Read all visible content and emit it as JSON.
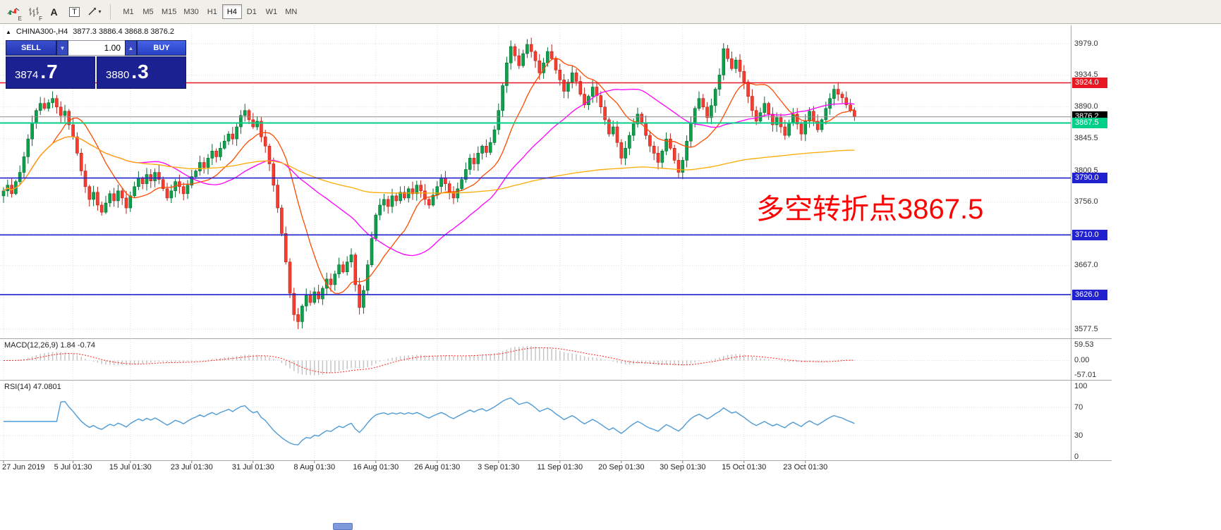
{
  "toolbar": {
    "sub_e": "E",
    "sub_f": "F",
    "text_tool": "A",
    "template_tool": "T",
    "dropdown_glyph": "▾",
    "timeframes": [
      "M1",
      "M5",
      "M15",
      "M30",
      "H1",
      "H4",
      "D1",
      "W1",
      "MN"
    ],
    "active_timeframe": "H4"
  },
  "quote": {
    "arrow_glyph": "▲",
    "symbol_period": "CHINA300-,H4",
    "ohlc": "3877.3 3886.4 3868.8 3876.2"
  },
  "trade": {
    "sell_label": "SELL",
    "buy_label": "BUY",
    "volume": "1.00",
    "volume_down_glyph": "▼",
    "volume_up_glyph": "▲",
    "bid_small": "3874",
    "bid_big": ".7",
    "ask_small": "3880",
    "ask_big": ".3"
  },
  "annotation": {
    "text": "多空转折点3867.5",
    "color": "#fe0000"
  },
  "macd_panel": {
    "label": "MACD(12,26,9) 1.84 -0.74",
    "axis": [
      {
        "text": "59.53",
        "v": 59.53
      },
      {
        "text": "0.00",
        "v": 0
      },
      {
        "text": "-57.01",
        "v": -57.01
      }
    ]
  },
  "rsi_panel": {
    "label": "RSI(14) 47.0801",
    "axis": [
      {
        "text": "100",
        "v": 100
      },
      {
        "text": "70",
        "v": 70
      },
      {
        "text": "30",
        "v": 30
      },
      {
        "text": "0",
        "v": 0
      }
    ]
  },
  "date_axis": [
    {
      "label": "27 Jun 2019",
      "index": 0
    },
    {
      "label": "5 Jul 01:30",
      "index": 17
    },
    {
      "label": "15 Jul 01:30",
      "index": 31
    },
    {
      "label": "23 Jul 01:30",
      "index": 46
    },
    {
      "label": "31 Jul 01:30",
      "index": 61
    },
    {
      "label": "8 Aug 01:30",
      "index": 76
    },
    {
      "label": "16 Aug 01:30",
      "index": 91
    },
    {
      "label": "26 Aug 01:30",
      "index": 106
    },
    {
      "label": "3 Sep 01:30",
      "index": 121
    },
    {
      "label": "11 Sep 01:30",
      "index": 136
    },
    {
      "label": "20 Sep 01:30",
      "index": 151
    },
    {
      "label": "30 Sep 01:30",
      "index": 166
    },
    {
      "label": "15 Oct 01:30",
      "index": 181
    },
    {
      "label": "23 Oct 01:30",
      "index": 196
    }
  ],
  "price_axis": [
    {
      "text": "3979.0",
      "price": 3979.0,
      "type": "plain"
    },
    {
      "text": "3934.5",
      "price": 3934.5,
      "type": "plain"
    },
    {
      "text": "3924.0",
      "price": 3924.0,
      "type": "badge",
      "bg": "#e81822"
    },
    {
      "text": "3890.0",
      "price": 3890.0,
      "type": "plain"
    },
    {
      "text": "3876.2",
      "price": 3876.2,
      "type": "badge",
      "bg": "#000000"
    },
    {
      "text": "3867.5",
      "price": 3867.5,
      "type": "badge",
      "bg": "#00cf8a"
    },
    {
      "text": "3845.5",
      "price": 3845.5,
      "type": "plain"
    },
    {
      "text": "3800.5",
      "price": 3800.5,
      "type": "plain"
    },
    {
      "text": "3790.0",
      "price": 3790.0,
      "type": "badge",
      "bg": "#2121cf"
    },
    {
      "text": "3756.0",
      "price": 3756.0,
      "type": "plain"
    },
    {
      "text": "3710.0",
      "price": 3710.0,
      "type": "badge",
      "bg": "#2121cf"
    },
    {
      "text": "3667.0",
      "price": 3667.0,
      "type": "plain"
    },
    {
      "text": "3626.0",
      "price": 3626.0,
      "type": "badge",
      "bg": "#2121cf"
    },
    {
      "text": "3577.5",
      "price": 3577.5,
      "type": "plain"
    }
  ],
  "chart_data": {
    "type": "candlestick",
    "symbol": "CHINA300-",
    "period": "H4",
    "last_ohlc": {
      "open": 3877.3,
      "high": 3886.4,
      "low": 3868.8,
      "close": 3876.2
    },
    "y_domain": [
      3566,
      4005
    ],
    "session_low": 3577.5,
    "up_color": "#0ca24b",
    "up_border": "#066a32",
    "down_color": "#fb3b2f",
    "down_border": "#b2241b",
    "first_open": 3765,
    "closes": [
      3772,
      3780,
      3768,
      3785,
      3798,
      3820,
      3845,
      3868,
      3885,
      3895,
      3888,
      3896,
      3902,
      3890,
      3878,
      3884,
      3865,
      3848,
      3825,
      3800,
      3778,
      3760,
      3770,
      3752,
      3742,
      3755,
      3768,
      3758,
      3772,
      3762,
      3748,
      3765,
      3778,
      3790,
      3782,
      3795,
      3786,
      3798,
      3788,
      3775,
      3762,
      3772,
      3785,
      3778,
      3768,
      3780,
      3792,
      3800,
      3812,
      3805,
      3818,
      3828,
      3820,
      3832,
      3842,
      3852,
      3845,
      3862,
      3878,
      3885,
      3872,
      3862,
      3870,
      3848,
      3835,
      3810,
      3780,
      3748,
      3712,
      3672,
      3628,
      3598,
      3588,
      3610,
      3625,
      3615,
      3630,
      3620,
      3635,
      3648,
      3640,
      3655,
      3668,
      3658,
      3672,
      3682,
      3640,
      3608,
      3632,
      3668,
      3705,
      3738,
      3752,
      3760,
      3750,
      3765,
      3758,
      3770,
      3762,
      3775,
      3768,
      3780,
      3772,
      3760,
      3752,
      3766,
      3778,
      3790,
      3782,
      3770,
      3762,
      3775,
      3788,
      3802,
      3818,
      3810,
      3825,
      3835,
      3826,
      3840,
      3858,
      3885,
      3920,
      3952,
      3975,
      3962,
      3948,
      3965,
      3978,
      3968,
      3955,
      3938,
      3952,
      3968,
      3958,
      3942,
      3928,
      3912,
      3925,
      3938,
      3926,
      3908,
      3893,
      3905,
      3918,
      3906,
      3890,
      3872,
      3852,
      3862,
      3840,
      3818,
      3832,
      3850,
      3866,
      3880,
      3868,
      3850,
      3835,
      3825,
      3812,
      3828,
      3845,
      3832,
      3815,
      3798,
      3815,
      3842,
      3868,
      3888,
      3902,
      3890,
      3875,
      3892,
      3915,
      3935,
      3972,
      3958,
      3944,
      3956,
      3940,
      3925,
      3905,
      3885,
      3870,
      3882,
      3895,
      3880,
      3865,
      3875,
      3862,
      3850,
      3868,
      3880,
      3866,
      3852,
      3870,
      3884,
      3870,
      3858,
      3872,
      3888,
      3902,
      3915,
      3908,
      3903,
      3893,
      3885,
      3876.2
    ],
    "grid_prices": [
      3979,
      3934.5,
      3890,
      3845.5,
      3800.5,
      3756,
      3711.5,
      3667,
      3622.5,
      3577.5
    ],
    "levels": [
      {
        "price": 3924.0,
        "color": "#e81822",
        "width": 1.4
      },
      {
        "price": 3876.2,
        "color": "#8c8c8c",
        "width": 1
      },
      {
        "price": 3867.5,
        "color": "#00cf8a",
        "width": 2
      },
      {
        "price": 3790.0,
        "color": "#2121cf",
        "width": 1.6
      },
      {
        "price": 3710.0,
        "color": "#2121cf",
        "width": 1.6
      },
      {
        "price": 3626.0,
        "color": "#2121cf",
        "width": 1.6
      }
    ],
    "moving_averages": [
      {
        "window": 13,
        "color": "#ff4a00"
      },
      {
        "window": 34,
        "color": "#ff00ff"
      },
      {
        "window": 150,
        "color": "#ffaa00"
      }
    ],
    "macd": {
      "fast": 12,
      "slow": 26,
      "signal_period": 9,
      "main_value": 1.84,
      "signal_value": -0.74,
      "hist_color": "#c2c2c2",
      "signal_color": "#ff2222",
      "range": [
        -57.01,
        59.53
      ]
    },
    "rsi": {
      "period": 14,
      "value": 47.0801,
      "color": "#4f9bd5",
      "levels": [
        70,
        30
      ],
      "range": [
        0,
        100
      ]
    }
  }
}
